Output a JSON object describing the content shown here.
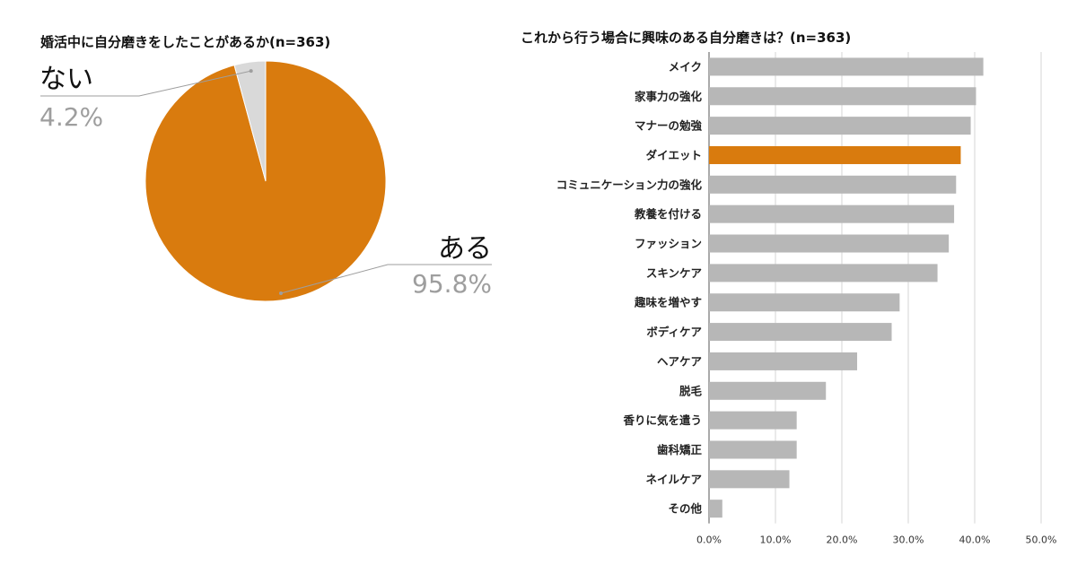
{
  "chart_data": [
    {
      "type": "pie",
      "title": "婚活中に自分磨きをしたことがあるか(n=363)",
      "slices": [
        {
          "label": "ある",
          "value": 95.8,
          "value_label": "95.8%",
          "color": "#d97b0e"
        },
        {
          "label": "ない",
          "value": 4.2,
          "value_label": "4.2%",
          "color": "#d9d9d9"
        }
      ]
    },
    {
      "type": "bar",
      "orientation": "horizontal",
      "title": "これから行う場合に興味のある自分磨きは？(n=363)",
      "categories": [
        "メイク",
        "家事力の強化",
        "マナーの勉強",
        "ダイエット",
        "コミュニケーション力の強化",
        "教養を付ける",
        "ファッション",
        "スキンケア",
        "趣味を増やす",
        "ボディケア",
        "ヘアケア",
        "脱毛",
        "香りに気を遣う",
        "歯科矯正",
        "ネイルケア",
        "その他"
      ],
      "values": [
        41.3,
        40.2,
        39.4,
        37.9,
        37.2,
        36.9,
        36.1,
        34.4,
        28.7,
        27.5,
        22.3,
        17.6,
        13.2,
        13.2,
        12.1,
        2.0
      ],
      "highlight_index": 3,
      "bar_color": "#b7b7b7",
      "highlight_color": "#d97b0e",
      "xlim": [
        0,
        50
      ],
      "xticks": [
        "0.0%",
        "10.0%",
        "20.0%",
        "30.0%",
        "40.0%",
        "50.0%"
      ],
      "grid": true
    }
  ]
}
